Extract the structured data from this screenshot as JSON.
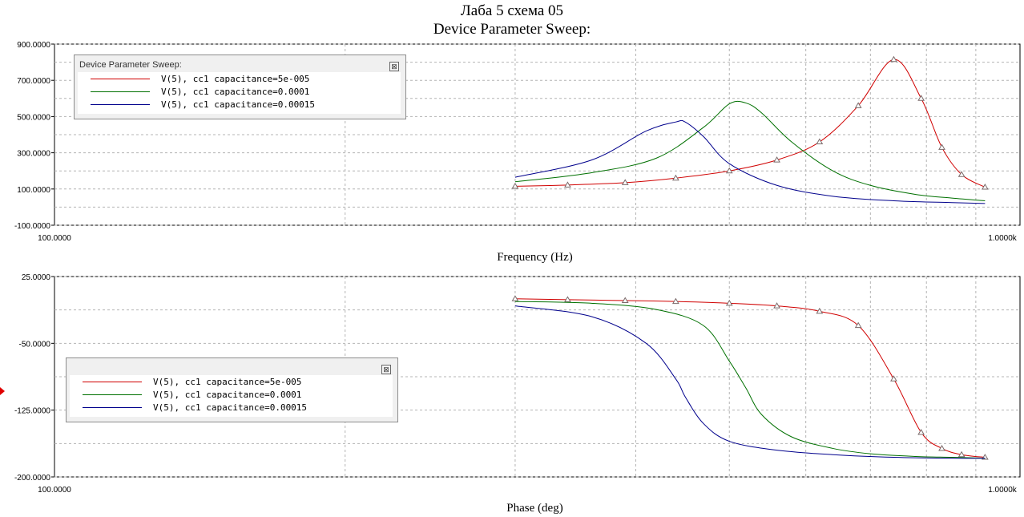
{
  "window": {
    "title_line1": "Лаба 5 схема 05",
    "title_line2": "Device Parameter Sweep:"
  },
  "legend_top": {
    "header": "Device Parameter Sweep:",
    "close_glyph": "⊠",
    "entries": [
      {
        "label": "V(5), cc1 capacitance=5e-005",
        "color": "#d00000"
      },
      {
        "label": "V(5), cc1 capacitance=0.0001",
        "color": "#007000"
      },
      {
        "label": "V(5), cc1 capacitance=0.00015",
        "color": "#00008c"
      }
    ]
  },
  "legend_bottom": {
    "close_glyph": "⊠",
    "entries": [
      {
        "label": "V(5), cc1 capacitance=5e-005",
        "color": "#d00000"
      },
      {
        "label": "V(5), cc1 capacitance=0.0001",
        "color": "#007000"
      },
      {
        "label": "V(5), cc1 capacitance=0.00015",
        "color": "#00008c"
      }
    ]
  },
  "chart_data": [
    {
      "type": "line",
      "xlabel": "Frequency (Hz)",
      "ylabel": "",
      "x_scale": "log",
      "xlim": [
        100,
        1000
      ],
      "ylim": [
        -100,
        900
      ],
      "x_tick_labels": [
        "100.0000",
        "1.0000k"
      ],
      "y_tick_labels": [
        "900.0000",
        "700.0000",
        "500.0000",
        "300.0000",
        "100.0000",
        "-100.0000"
      ],
      "y_tick_values": [
        900,
        700,
        500,
        300,
        100,
        -100
      ],
      "grid": true,
      "legend_position": "top-left",
      "series": [
        {
          "name": "V(5), cc1 capacitance=5e-005",
          "color": "#d00000",
          "markers": "triangle",
          "x": [
            300,
            340,
            390,
            440,
            500,
            560,
            620,
            680,
            740,
            790,
            830,
            870,
            920
          ],
          "y": [
            115,
            122,
            135,
            160,
            200,
            260,
            360,
            560,
            815,
            600,
            330,
            180,
            110
          ]
        },
        {
          "name": "V(5), cc1 capacitance=0.0001",
          "color": "#007000",
          "markers": "none",
          "x": [
            300,
            360,
            420,
            470,
            500,
            520,
            540,
            580,
            640,
            700,
            780,
            850,
            920
          ],
          "y": [
            140,
            190,
            270,
            440,
            570,
            575,
            520,
            360,
            200,
            120,
            70,
            50,
            35
          ]
        },
        {
          "name": "V(5), cc1 capacitance=0.00015",
          "color": "#00008c",
          "markers": "none",
          "x": [
            300,
            360,
            410,
            440,
            450,
            470,
            500,
            560,
            640,
            740,
            850,
            920
          ],
          "y": [
            165,
            260,
            420,
            470,
            470,
            390,
            240,
            120,
            60,
            35,
            25,
            20
          ]
        }
      ]
    },
    {
      "type": "line",
      "xlabel": "Phase (deg)",
      "ylabel": "",
      "x_scale": "log",
      "xlim": [
        100,
        1000
      ],
      "ylim": [
        -200,
        25
      ],
      "x_tick_labels": [
        "100.0000",
        "1.0000k"
      ],
      "y_tick_labels": [
        "25.0000",
        "-50.0000",
        "-125.0000",
        "-200.0000"
      ],
      "y_tick_values": [
        25,
        -50,
        -125,
        -200
      ],
      "grid": true,
      "legend_position": "bottom-left",
      "series": [
        {
          "name": "V(5), cc1 capacitance=5e-005",
          "color": "#d00000",
          "markers": "triangle",
          "x": [
            300,
            340,
            390,
            440,
            500,
            560,
            620,
            680,
            740,
            790,
            830,
            870,
            920
          ],
          "y": [
            0,
            -1,
            -2,
            -3,
            -5,
            -8,
            -14,
            -30,
            -90,
            -150,
            -168,
            -175,
            -178
          ]
        },
        {
          "name": "V(5), cc1 capacitance=0.0001",
          "color": "#007000",
          "markers": "none",
          "x": [
            300,
            360,
            420,
            470,
            500,
            520,
            540,
            580,
            640,
            700,
            780,
            850,
            920
          ],
          "y": [
            -3,
            -5,
            -12,
            -30,
            -70,
            -100,
            -130,
            -155,
            -168,
            -174,
            -177,
            -178,
            -179
          ]
        },
        {
          "name": "V(5), cc1 capacitance=0.00015",
          "color": "#00008c",
          "markers": "none",
          "x": [
            300,
            360,
            410,
            440,
            450,
            470,
            500,
            560,
            640,
            740,
            850,
            920
          ],
          "y": [
            -8,
            -20,
            -50,
            -90,
            -110,
            -140,
            -160,
            -170,
            -175,
            -178,
            -179,
            -179
          ]
        }
      ]
    }
  ]
}
